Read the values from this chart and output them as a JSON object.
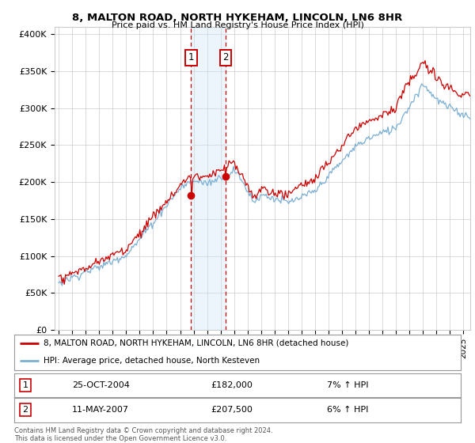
{
  "title": "8, MALTON ROAD, NORTH HYKEHAM, LINCOLN, LN6 8HR",
  "subtitle": "Price paid vs. HM Land Registry's House Price Index (HPI)",
  "ylabel_ticks": [
    "£0",
    "£50K",
    "£100K",
    "£150K",
    "£200K",
    "£250K",
    "£300K",
    "£350K",
    "£400K"
  ],
  "ytick_values": [
    0,
    50000,
    100000,
    150000,
    200000,
    250000,
    300000,
    350000,
    400000
  ],
  "ylim": [
    0,
    410000
  ],
  "xlim_start": 1994.7,
  "xlim_end": 2025.5,
  "transaction1_date": 2004.82,
  "transaction1_label": "1",
  "transaction1_price": 182000,
  "transaction2_date": 2007.37,
  "transaction2_label": "2",
  "transaction2_price": 207500,
  "shade_color": "#cce4f7",
  "hpi_line_color": "#7bafd4",
  "price_line_color": "#cc0000",
  "legend_line1": "8, MALTON ROAD, NORTH HYKEHAM, LINCOLN, LN6 8HR (detached house)",
  "legend_line2": "HPI: Average price, detached house, North Kesteven",
  "table_row1_num": "1",
  "table_row1_date": "25-OCT-2004",
  "table_row1_price": "£182,000",
  "table_row1_hpi": "7% ↑ HPI",
  "table_row2_num": "2",
  "table_row2_date": "11-MAY-2007",
  "table_row2_price": "£207,500",
  "table_row2_hpi": "6% ↑ HPI",
  "footer": "Contains HM Land Registry data © Crown copyright and database right 2024.\nThis data is licensed under the Open Government Licence v3.0.",
  "background_color": "#ffffff",
  "grid_color": "#cccccc",
  "x_ticks": [
    1995,
    1996,
    1997,
    1998,
    1999,
    2000,
    2001,
    2002,
    2003,
    2004,
    2005,
    2006,
    2007,
    2008,
    2009,
    2010,
    2011,
    2012,
    2013,
    2014,
    2015,
    2016,
    2017,
    2018,
    2019,
    2020,
    2021,
    2022,
    2023,
    2024,
    2025
  ]
}
